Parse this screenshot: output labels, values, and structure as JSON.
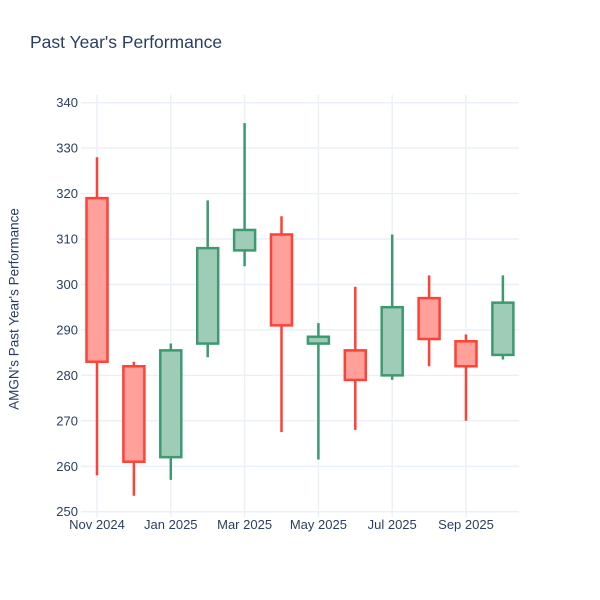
{
  "title": "Past Year's Performance",
  "colors": {
    "background": "#ffffff",
    "text": "#2a3f5f",
    "grid": "#ebf0f8",
    "increasing_line": "#3D9970",
    "increasing_fill": "#9ECCB7",
    "decreasing_line": "#FF4136",
    "decreasing_fill": "#FFA09A"
  },
  "chart_data": {
    "type": "candlestick",
    "title": "Past Year's Performance",
    "xlabel": "",
    "ylabel": "AMGN's Past Year's Performance",
    "ylim": [
      250,
      340
    ],
    "grid": true,
    "legend": false,
    "yticks": [
      250,
      260,
      270,
      280,
      290,
      300,
      310,
      320,
      330,
      340
    ],
    "xticks": [
      {
        "index": 0,
        "label": "Nov 2024"
      },
      {
        "index": 2,
        "label": "Jan 2025"
      },
      {
        "index": 4,
        "label": "Mar 2025"
      },
      {
        "index": 6,
        "label": "May 2025"
      },
      {
        "index": 8,
        "label": "Jul 2025"
      },
      {
        "index": 10,
        "label": "Sep 2025"
      }
    ],
    "series": [
      {
        "name": "AMGN",
        "candles": [
          {
            "date": "Nov 2024",
            "open": 319,
            "high": 328,
            "low": 258,
            "close": 283
          },
          {
            "date": "Dec 2024",
            "open": 282,
            "high": 283,
            "low": 253.5,
            "close": 261
          },
          {
            "date": "Jan 2025",
            "open": 262,
            "high": 287,
            "low": 257,
            "close": 285.5
          },
          {
            "date": "Feb 2025",
            "open": 287,
            "high": 318.5,
            "low": 284,
            "close": 308
          },
          {
            "date": "Mar 2025",
            "open": 307.5,
            "high": 335.5,
            "low": 304,
            "close": 312
          },
          {
            "date": "Apr 2025",
            "open": 311,
            "high": 315,
            "low": 267.5,
            "close": 291
          },
          {
            "date": "May 2025",
            "open": 287,
            "high": 291.5,
            "low": 261.5,
            "close": 288.5
          },
          {
            "date": "Jun 2025",
            "open": 285.5,
            "high": 299.5,
            "low": 268,
            "close": 279
          },
          {
            "date": "Jul 2025",
            "open": 280,
            "high": 311,
            "low": 279,
            "close": 295
          },
          {
            "date": "Aug 2025",
            "open": 297,
            "high": 302,
            "low": 282,
            "close": 288
          },
          {
            "date": "Sep 2025",
            "open": 287.5,
            "high": 289,
            "low": 270,
            "close": 282
          },
          {
            "date": "Oct 2025",
            "open": 284.5,
            "high": 302,
            "low": 283.5,
            "close": 296
          }
        ]
      }
    ]
  }
}
